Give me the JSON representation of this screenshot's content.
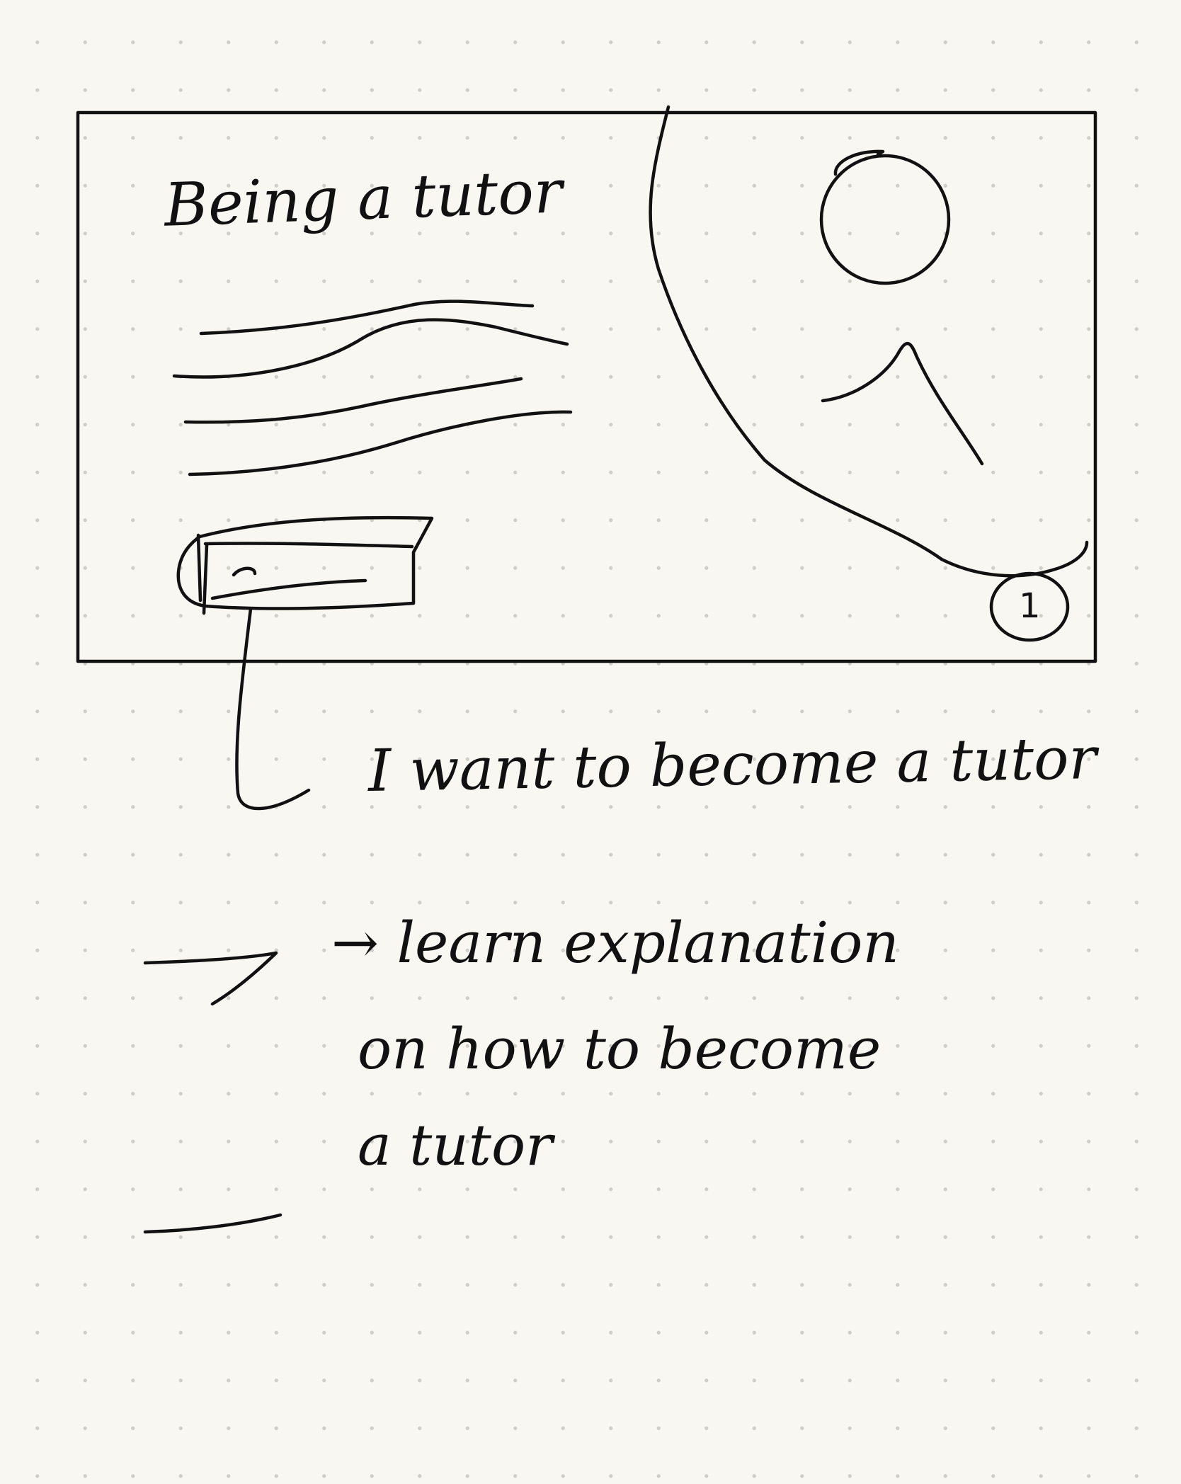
{
  "page": {
    "background_color": "#f8f7f1",
    "ink_color": "#111111",
    "grid": "dotted"
  },
  "slide": {
    "title": "Being a tutor",
    "image_placeholder": "person-illustration",
    "slide_number": "1"
  },
  "annotation": {
    "button_description": "I want to become a tutor"
  },
  "notes": {
    "line_1": "→ learn explanation",
    "line_2": "on how to become",
    "line_3": "a tutor"
  }
}
